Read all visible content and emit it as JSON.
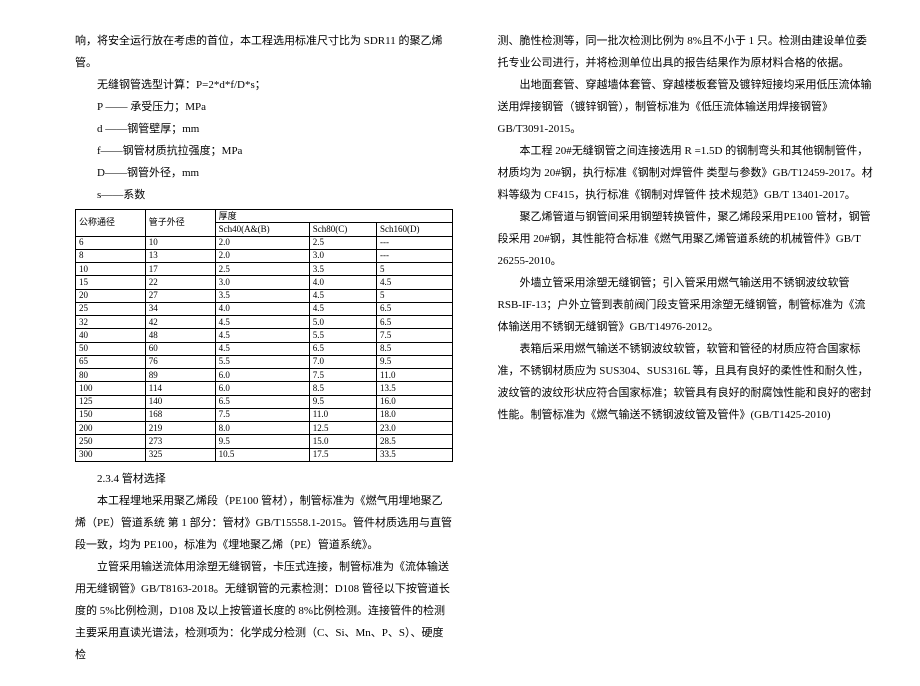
{
  "left": {
    "p1": "响，将安全运行放在考虑的首位，本工程选用标准尺寸比为 SDR11 的聚乙烯管。",
    "calc_line": "无缝钢管选型计算：P=2*d*f/D*s；",
    "def_P": "P —— 承受压力；MPa",
    "def_d": "d ——钢管壁厚；mm",
    "def_f": "f——钢管材质抗拉强度；MPa",
    "def_D": "D——钢管外径，mm",
    "def_s": "s——系数",
    "tbl": {
      "h1": "公称通径",
      "h2": "管子外径",
      "h3": "厚度",
      "sub1": "Sch40(A&(B)",
      "sub2": "Sch80(C)",
      "sub3": "Sch160(D)",
      "rows": [
        [
          "6",
          "10",
          "2.0",
          "2.5",
          "---"
        ],
        [
          "8",
          "13",
          "2.0",
          "3.0",
          "---"
        ],
        [
          "10",
          "17",
          "2.5",
          "3.5",
          "5"
        ],
        [
          "15",
          "22",
          "3.0",
          "4.0",
          "4.5"
        ],
        [
          "20",
          "27",
          "3.5",
          "4.5",
          "5"
        ],
        [
          "25",
          "34",
          "4.0",
          "4.5",
          "6.5"
        ],
        [
          "32",
          "42",
          "4.5",
          "5.0",
          "6.5"
        ],
        [
          "40",
          "48",
          "4.5",
          "5.5",
          "7.5"
        ],
        [
          "50",
          "60",
          "4.5",
          "6.5",
          "8.5"
        ],
        [
          "65",
          "76",
          "5.5",
          "7.0",
          "9.5"
        ],
        [
          "80",
          "89",
          "6.0",
          "7.5",
          "11.0"
        ],
        [
          "100",
          "114",
          "6.0",
          "8.5",
          "13.5"
        ],
        [
          "125",
          "140",
          "6.5",
          "9.5",
          "16.0"
        ],
        [
          "150",
          "168",
          "7.5",
          "11.0",
          "18.0"
        ],
        [
          "200",
          "219",
          "8.0",
          "12.5",
          "23.0"
        ],
        [
          "250",
          "273",
          "9.5",
          "15.0",
          "28.5"
        ],
        [
          "300",
          "325",
          "10.5",
          "17.5",
          "33.5"
        ]
      ]
    },
    "sec_head": "2.3.4 管材选择",
    "p2": "本工程埋地采用聚乙烯段（PE100 管材），制管标准为《燃气用埋地聚乙烯（PE）管道系统 第 1 部分：管材》GB/T15558.1-2015。管件材质选用与直管段一致，均为 PE100，标准为《埋地聚乙烯（PE）管道系统》。",
    "p3": "立管采用输送流体用涂塑无缝钢管，卡压式连接，制管标准为《流体输送用无缝钢管》GB/T8163-2018。无缝钢管的元素检测：D108 管径以下按管道长度的 5%比例检测，D108 及以上按管道长度的 8%比例检测。连接管件的检测主要采用直读光谱法，检测项为：化学成分检测（C、Si、Mn、P、S）、硬度检"
  },
  "right": {
    "p1": "测、脆性检测等，同一批次检测比例为 8%且不小于 1 只。检测由建设单位委托专业公司进行，并将检测单位出具的报告结果作为原材料合格的依据。",
    "p2": "出地面套管、穿越墙体套管、穿越楼板套管及镀锌短接均采用低压流体输送用焊接钢管（镀锌钢管），制管标准为《低压流体输送用焊接钢管》GB/T3091-2015。",
    "p3": "本工程 20#无缝钢管之间连接选用 R =1.5D 的钢制弯头和其他钢制管件，材质均为 20#钢，执行标准《钢制对焊管件 类型与参数》GB/T12459-2017。材料等级为 CF415，执行标准《钢制对焊管件 技术规范》GB/T 13401-2017。",
    "p4": "聚乙烯管道与钢管间采用钢塑转换管件，聚乙烯段采用PE100 管材，钢管段采用 20#钢，其性能符合标准《燃气用聚乙烯管道系统的机械管件》GB/T 26255-2010。",
    "p5": "外墙立管采用涂塑无缝钢管；引入管采用燃气输送用不锈钢波纹软管 RSB-IF-13；户外立管到表前阀门段支管采用涂塑无缝钢管，制管标准为《流体输送用不锈钢无缝钢管》GB/T14976-2012。",
    "p6": "表箱后采用燃气输送不锈钢波纹软管，软管和管径的材质应符合国家标准，不锈钢材质应为 SUS304、SUS316L 等，且具有良好的柔性性和耐久性，波纹管的波纹形状应符合国家标准；软管具有良好的耐腐蚀性能和良好的密封性能。制管标准为《燃气输送不锈钢波纹管及管件》(GB/T1425-2010)"
  }
}
